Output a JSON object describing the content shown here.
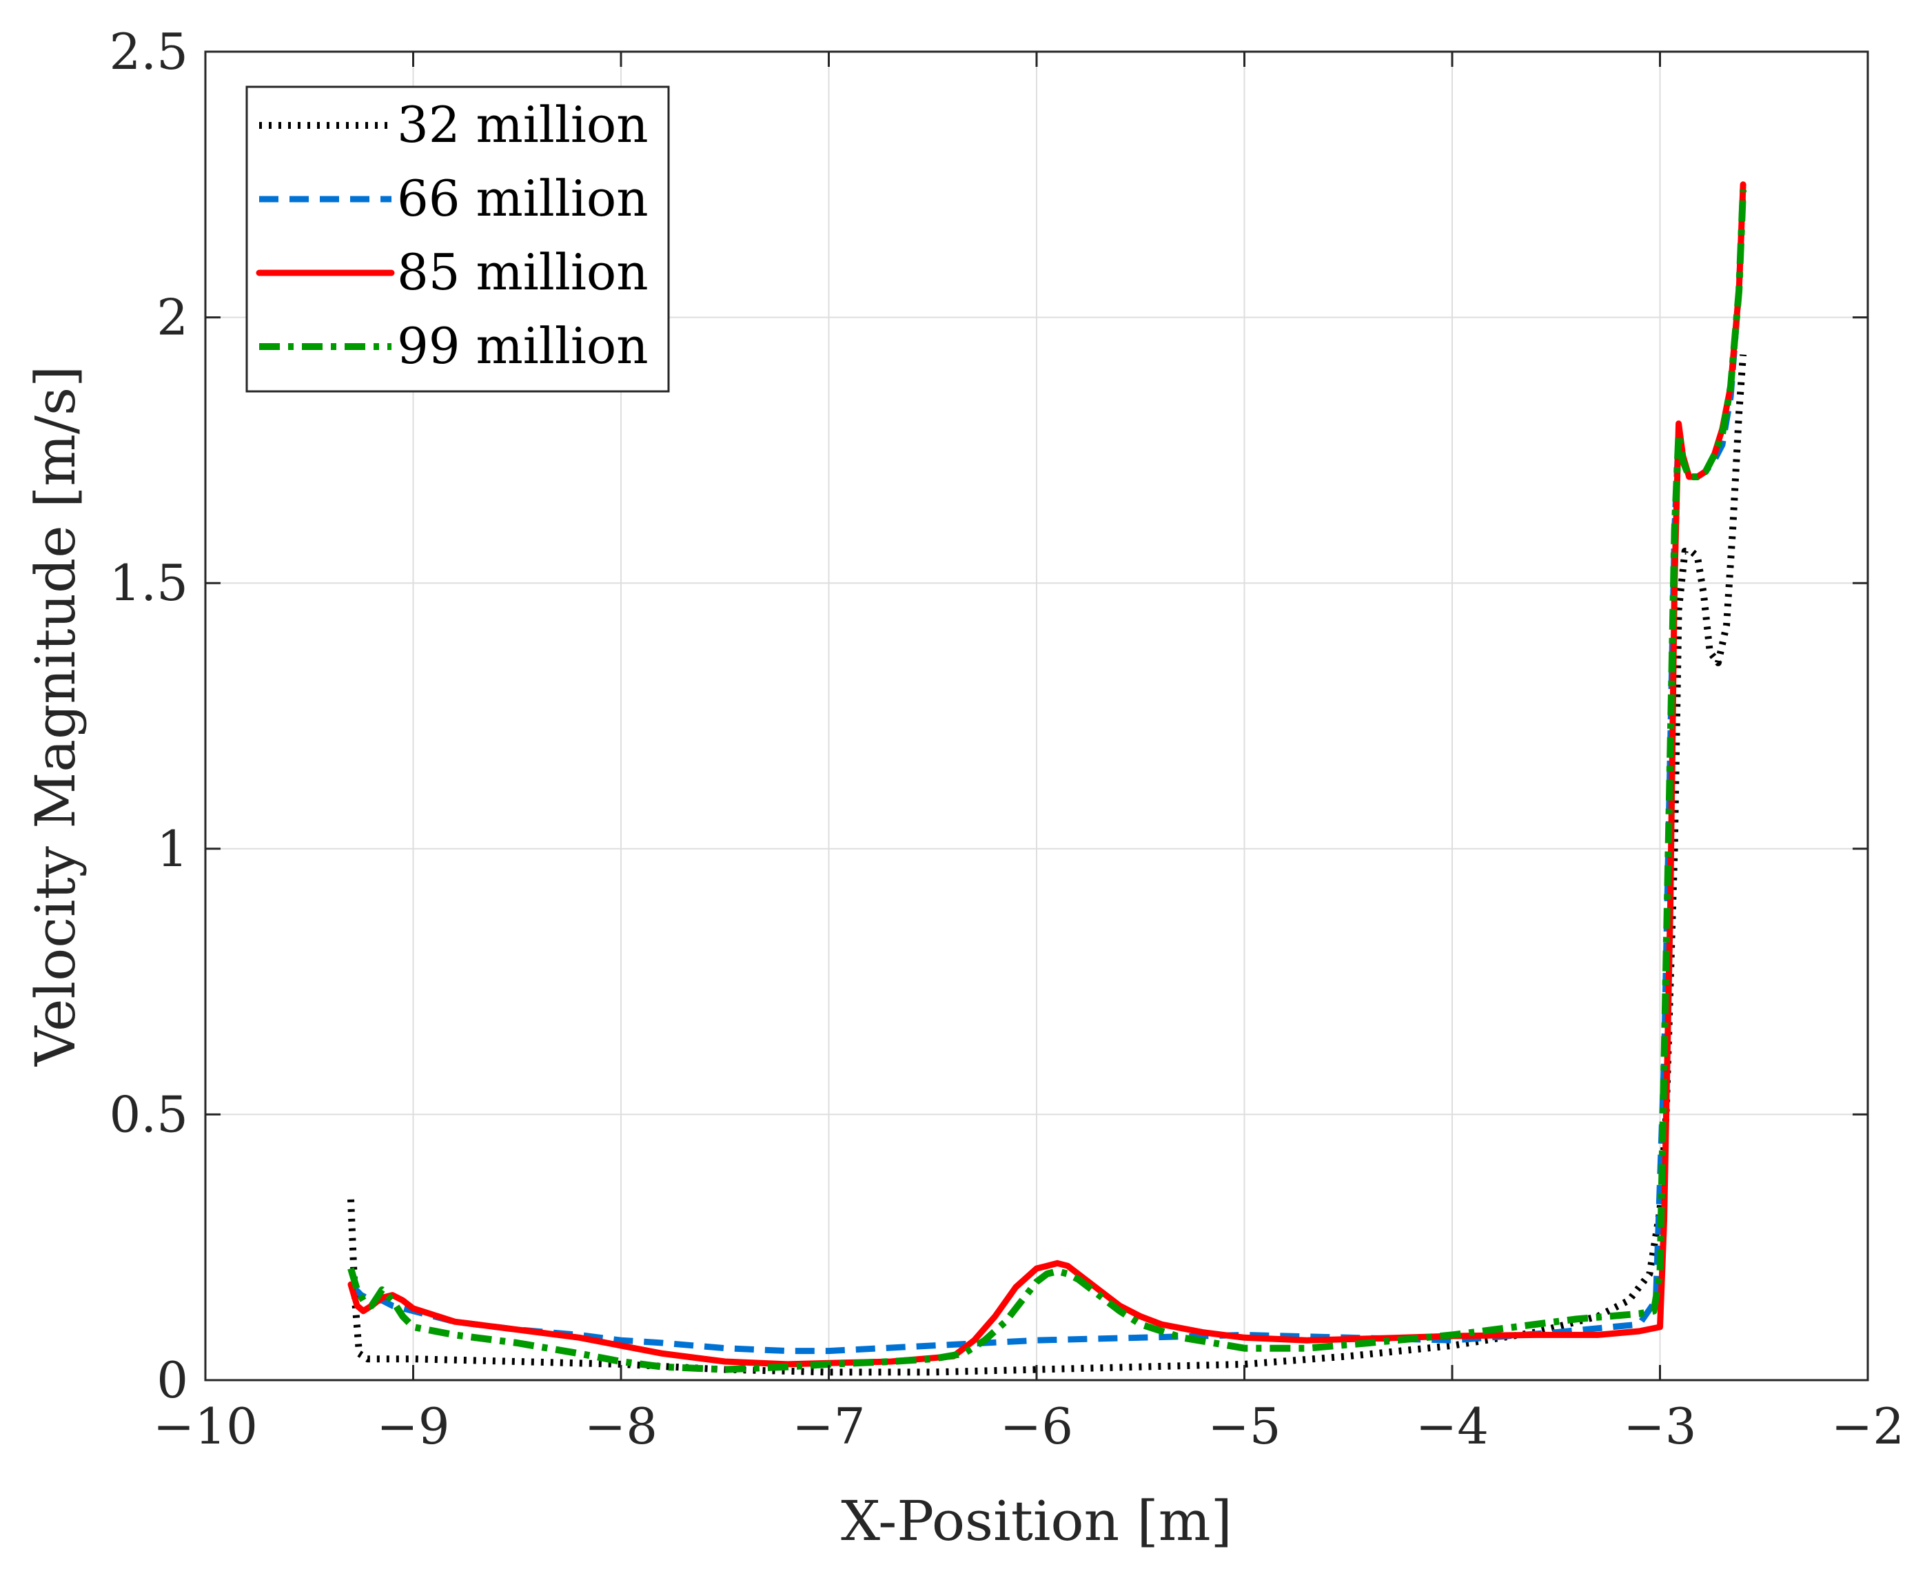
{
  "chart_data": {
    "type": "line",
    "title": "",
    "xlabel": "X-Position [m]",
    "ylabel": "Velocity Magnitude [m/s]",
    "xlim": [
      -10,
      -2
    ],
    "ylim": [
      0,
      2.5
    ],
    "xticks": [
      -10,
      -9,
      -8,
      -7,
      -6,
      -5,
      -4,
      -3,
      -2
    ],
    "yticks": [
      0,
      0.5,
      1,
      1.5,
      2,
      2.5
    ],
    "xtick_labels": [
      "−10",
      "−9",
      "−8",
      "−7",
      "−6",
      "−5",
      "−4",
      "−3",
      "−2"
    ],
    "ytick_labels": [
      "0",
      "0.5",
      "1",
      "1.5",
      "2",
      "2.5"
    ],
    "grid": true,
    "legend_position": "top-left",
    "series": [
      {
        "name": "32 million",
        "color": "#000000",
        "style": "dotted",
        "x": [
          -9.3,
          -9.28,
          -9.26,
          -9.22,
          -9.0,
          -8.5,
          -8.0,
          -7.5,
          -7.0,
          -6.5,
          -6.0,
          -5.5,
          -5.0,
          -4.5,
          -4.0,
          -3.6,
          -3.3,
          -3.15,
          -3.05,
          -3.0,
          -2.97,
          -2.93,
          -2.91,
          -2.88,
          -2.85,
          -2.82,
          -2.79,
          -2.76,
          -2.72,
          -2.68,
          -2.65,
          -2.62,
          -2.6
        ],
        "y": [
          0.34,
          0.15,
          0.05,
          0.04,
          0.04,
          0.035,
          0.03,
          0.02,
          0.015,
          0.015,
          0.02,
          0.025,
          0.03,
          0.045,
          0.065,
          0.09,
          0.12,
          0.15,
          0.2,
          0.32,
          0.5,
          1.0,
          1.45,
          1.56,
          1.56,
          1.55,
          1.48,
          1.37,
          1.35,
          1.42,
          1.6,
          1.82,
          1.93
        ]
      },
      {
        "name": "66 million",
        "color": "#0072D4",
        "style": "dashed",
        "x": [
          -9.3,
          -9.25,
          -9.2,
          -9.15,
          -9.1,
          -9.0,
          -8.8,
          -8.5,
          -8.2,
          -8.0,
          -7.8,
          -7.5,
          -7.2,
          -7.0,
          -6.5,
          -6.0,
          -5.5,
          -5.0,
          -4.5,
          -4.0,
          -3.5,
          -3.1,
          -3.02,
          -2.98,
          -2.95,
          -2.93,
          -2.91,
          -2.89,
          -2.86,
          -2.82,
          -2.78,
          -2.74,
          -2.7,
          -2.66,
          -2.62,
          -2.6
        ],
        "y": [
          0.18,
          0.16,
          0.15,
          0.15,
          0.14,
          0.13,
          0.11,
          0.095,
          0.085,
          0.075,
          0.07,
          0.06,
          0.055,
          0.055,
          0.065,
          0.075,
          0.08,
          0.085,
          0.08,
          0.075,
          0.09,
          0.105,
          0.15,
          0.6,
          1.2,
          1.6,
          1.78,
          1.73,
          1.7,
          1.7,
          1.71,
          1.73,
          1.76,
          1.85,
          2.05,
          2.24
        ]
      },
      {
        "name": "85 million",
        "color": "#FF0000",
        "style": "solid",
        "x": [
          -9.3,
          -9.27,
          -9.24,
          -9.2,
          -9.15,
          -9.1,
          -9.05,
          -9.0,
          -8.8,
          -8.5,
          -8.2,
          -8.0,
          -7.8,
          -7.5,
          -7.2,
          -7.0,
          -6.7,
          -6.4,
          -6.3,
          -6.2,
          -6.1,
          -6.0,
          -5.95,
          -5.9,
          -5.85,
          -5.8,
          -5.7,
          -5.6,
          -5.5,
          -5.4,
          -5.2,
          -5.0,
          -4.7,
          -4.4,
          -4.0,
          -3.6,
          -3.3,
          -3.1,
          -3.0,
          -2.98,
          -2.95,
          -2.93,
          -2.91,
          -2.89,
          -2.86,
          -2.82,
          -2.78,
          -2.74,
          -2.7,
          -2.66,
          -2.62,
          -2.6
        ],
        "y": [
          0.18,
          0.14,
          0.13,
          0.14,
          0.155,
          0.16,
          0.15,
          0.135,
          0.11,
          0.095,
          0.08,
          0.065,
          0.05,
          0.035,
          0.03,
          0.032,
          0.035,
          0.045,
          0.075,
          0.12,
          0.175,
          0.21,
          0.215,
          0.22,
          0.215,
          0.2,
          0.17,
          0.14,
          0.12,
          0.105,
          0.09,
          0.08,
          0.075,
          0.078,
          0.083,
          0.085,
          0.085,
          0.092,
          0.1,
          0.3,
          0.9,
          1.5,
          1.8,
          1.74,
          1.7,
          1.7,
          1.71,
          1.74,
          1.79,
          1.87,
          2.05,
          2.25
        ]
      },
      {
        "name": "99 million",
        "color": "#009900",
        "style": "dashdot",
        "x": [
          -9.3,
          -9.27,
          -9.24,
          -9.2,
          -9.15,
          -9.1,
          -9.05,
          -9.0,
          -8.8,
          -8.5,
          -8.2,
          -8.0,
          -7.8,
          -7.5,
          -7.2,
          -7.0,
          -6.7,
          -6.5,
          -6.35,
          -6.25,
          -6.15,
          -6.05,
          -6.0,
          -5.95,
          -5.9,
          -5.85,
          -5.8,
          -5.7,
          -5.6,
          -5.5,
          -5.3,
          -5.0,
          -4.7,
          -4.4,
          -4.0,
          -3.7,
          -3.4,
          -3.1,
          -3.03,
          -3.0,
          -2.98,
          -2.95,
          -2.93,
          -2.91,
          -2.89,
          -2.86,
          -2.82,
          -2.78,
          -2.74,
          -2.7,
          -2.66,
          -2.62,
          -2.6
        ],
        "y": [
          0.21,
          0.17,
          0.15,
          0.14,
          0.17,
          0.15,
          0.12,
          0.1,
          0.085,
          0.07,
          0.05,
          0.035,
          0.025,
          0.02,
          0.025,
          0.03,
          0.035,
          0.04,
          0.05,
          0.075,
          0.11,
          0.16,
          0.185,
          0.2,
          0.205,
          0.2,
          0.19,
          0.16,
          0.13,
          0.105,
          0.08,
          0.06,
          0.06,
          0.07,
          0.085,
          0.1,
          0.115,
          0.125,
          0.13,
          0.2,
          0.6,
          1.2,
          1.6,
          1.78,
          1.73,
          1.7,
          1.7,
          1.71,
          1.74,
          1.78,
          1.87,
          2.05,
          2.24
        ]
      }
    ]
  }
}
